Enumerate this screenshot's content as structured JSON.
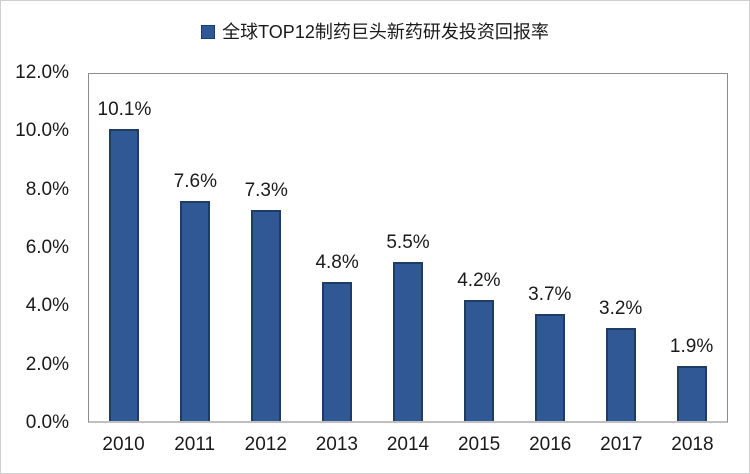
{
  "legend": {
    "label": "全球TOP12制药巨头新药研发投资回报率"
  },
  "chart_data": {
    "type": "bar",
    "title": "全球TOP12制药巨头新药研发投资回报率",
    "categories": [
      "2010",
      "2011",
      "2012",
      "2013",
      "2014",
      "2015",
      "2016",
      "2017",
      "2018"
    ],
    "values": [
      10.1,
      7.6,
      7.3,
      4.8,
      5.5,
      4.2,
      3.7,
      3.2,
      1.9
    ],
    "data_labels": [
      "10.1%",
      "7.6%",
      "7.3%",
      "4.8%",
      "5.5%",
      "4.2%",
      "3.7%",
      "3.2%",
      "1.9%"
    ],
    "xlabel": "",
    "ylabel": "",
    "ylim": [
      0,
      12
    ],
    "ytick_labels_bottom_to_top": [
      "0.0%",
      "2.0%",
      "4.0%",
      "6.0%",
      "8.0%",
      "10.0%",
      "12.0%"
    ],
    "grid": false,
    "legend_position": "top-center",
    "colors": {
      "bar_fill": "#2f5895",
      "bar_border": "#1f3c64",
      "plot_border": "#8c8c8c",
      "axis_line": "#bfbfbf",
      "text": "#1a1a1a"
    }
  }
}
